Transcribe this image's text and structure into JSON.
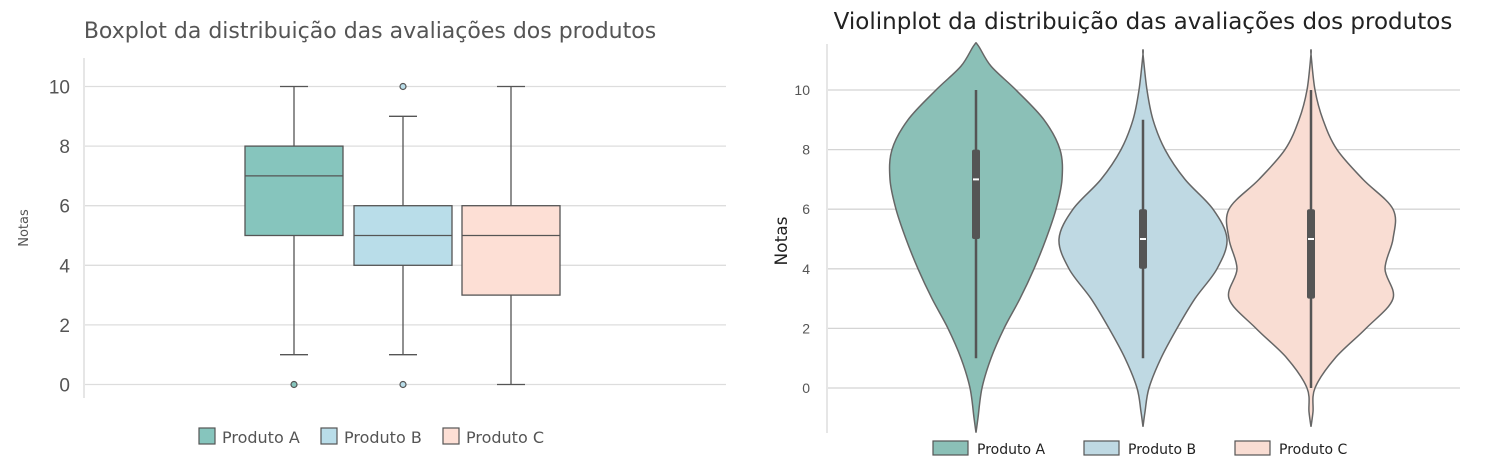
{
  "chart_data": [
    {
      "type": "boxplot",
      "title": "Boxplot da distribuição das avaliações dos produtos",
      "ylabel": "Notas",
      "xlabel": "",
      "ylim": [
        -0.5,
        10.9
      ],
      "yticks": [
        "0",
        "2",
        "4",
        "6",
        "8",
        "10"
      ],
      "grid": "horizontal",
      "legend_position": "bottom",
      "series": [
        {
          "name": "Produto A",
          "color": "#86c5bd",
          "min": 1,
          "q1": 5,
          "median": 7,
          "q3": 8,
          "max": 10,
          "outliers": [
            0
          ]
        },
        {
          "name": "Produto B",
          "color": "#b9dde9",
          "min": 1,
          "q1": 4,
          "median": 5,
          "q3": 6,
          "max": 9,
          "outliers": [
            0,
            10
          ]
        },
        {
          "name": "Produto C",
          "color": "#fddfd5",
          "min": 0,
          "q1": 3,
          "median": 5,
          "q3": 6,
          "max": 10,
          "outliers": []
        }
      ]
    },
    {
      "type": "violin",
      "title": "Violinplot da distribuição das avaliações dos produtos",
      "ylabel": "Notas",
      "xlabel": "",
      "ylim": [
        -1.5,
        11.5
      ],
      "yticks": [
        "0",
        "2",
        "4",
        "6",
        "8",
        "10"
      ],
      "grid": "horizontal",
      "legend_position": "bottom",
      "series": [
        {
          "name": "Produto A",
          "color": "#8bc0b7",
          "min": 1,
          "q1": 5,
          "median": 7,
          "q3": 8,
          "max": 10,
          "range": [
            -1.5,
            11.5
          ]
        },
        {
          "name": "Produto B",
          "color": "#bfd9e3",
          "min": 1,
          "q1": 4,
          "median": 5,
          "q3": 6,
          "max": 9,
          "range": [
            -1.3,
            11.2
          ]
        },
        {
          "name": "Produto C",
          "color": "#f9ddd3",
          "min": 0,
          "q1": 3,
          "median": 5,
          "q3": 6,
          "max": 10,
          "range": [
            -1.3,
            11.2
          ]
        }
      ]
    }
  ]
}
